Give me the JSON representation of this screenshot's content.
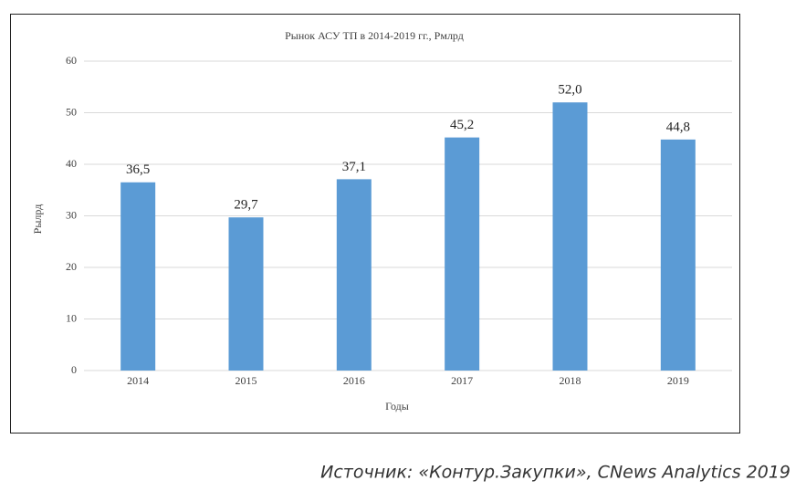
{
  "chart_data": {
    "type": "bar",
    "title": "Рынок АСУ ТП в 2014-2019 гг., Рмлрд",
    "x_label": "Годы",
    "y_label": "Рылрд",
    "categories": [
      "2014",
      "2015",
      "2016",
      "2017",
      "2018",
      "2019"
    ],
    "values": [
      36.5,
      29.7,
      37.1,
      45.2,
      52.0,
      44.8
    ],
    "value_labels": [
      "36,5",
      "29,7",
      "37,1",
      "45,2",
      "52,0",
      "44,8"
    ],
    "color": "#5b9bd5",
    "ylim": [
      0,
      60
    ],
    "yticks": [
      0,
      10,
      20,
      30,
      40,
      50,
      60
    ],
    "grid": true
  },
  "source": "Источник: «Контур.Закупки», CNews Analytics 2019"
}
